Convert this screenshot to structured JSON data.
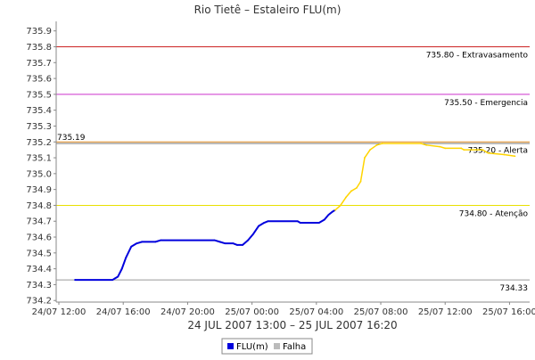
{
  "chart_data": {
    "type": "line",
    "title": "Rio Tietê – Estaleiro FLU(m)",
    "xlabel": "24 JUL 2007 13:00 – 25 JUL 2007 16:20",
    "ylabel": "",
    "ylim": [
      734.19,
      735.96
    ],
    "xlim": [
      "2007-07-24 11:50",
      "2007-07-25 17:15"
    ],
    "grid": false,
    "y_ticks": [
      "734.2",
      "734.3",
      "734.4",
      "734.5",
      "734.6",
      "734.7",
      "734.8",
      "734.9",
      "735.0",
      "735.1",
      "735.2",
      "735.3",
      "735.4",
      "735.5",
      "735.6",
      "735.7",
      "735.8",
      "735.9"
    ],
    "x_ticks": [
      {
        "t": "2007-07-24 12:00",
        "label": "24/07 12:00"
      },
      {
        "t": "2007-07-24 16:00",
        "label": "24/07 16:00"
      },
      {
        "t": "2007-07-24 20:00",
        "label": "24/07 20:00"
      },
      {
        "t": "2007-07-25 00:00",
        "label": "25/07 00:00"
      },
      {
        "t": "2007-07-25 04:00",
        "label": "25/07 04:00"
      },
      {
        "t": "2007-07-25 08:00",
        "label": "25/07 08:00"
      },
      {
        "t": "2007-07-25 12:00",
        "label": "25/07 12:00"
      },
      {
        "t": "2007-07-25 16:00",
        "label": "25/07 16:00"
      }
    ],
    "thresholds": [
      {
        "value": 735.8,
        "label": "735.80 - Extravasamento",
        "color": "#cc2222"
      },
      {
        "value": 735.5,
        "label": "735.50 - Emergencia",
        "color": "#cc33cc"
      },
      {
        "value": 735.2,
        "label": "735.20 - Alerta",
        "color": "#e08a1e"
      },
      {
        "value": 734.8,
        "label": "734.80 - Atenção",
        "color": "#e8e000"
      },
      {
        "value": 734.33,
        "label": "734.33",
        "color": "#999999"
      },
      {
        "value": 735.19,
        "label": "735.19",
        "color": "#777777"
      }
    ],
    "series": [
      {
        "name": "FLU(m)",
        "color": "#0000dd",
        "points": [
          [
            "2007-07-24 13:00",
            734.33
          ],
          [
            "2007-07-24 15:20",
            734.33
          ],
          [
            "2007-07-24 15:40",
            734.35
          ],
          [
            "2007-07-24 15:55",
            734.4
          ],
          [
            "2007-07-24 16:10",
            734.47
          ],
          [
            "2007-07-24 16:30",
            734.54
          ],
          [
            "2007-07-24 16:50",
            734.56
          ],
          [
            "2007-07-24 17:10",
            734.57
          ],
          [
            "2007-07-24 18:00",
            734.57
          ],
          [
            "2007-07-24 18:20",
            734.58
          ],
          [
            "2007-07-24 21:40",
            734.58
          ],
          [
            "2007-07-24 22:00",
            734.57
          ],
          [
            "2007-07-24 22:20",
            734.56
          ],
          [
            "2007-07-24 22:50",
            734.56
          ],
          [
            "2007-07-24 23:05",
            734.55
          ],
          [
            "2007-07-24 23:25",
            734.55
          ],
          [
            "2007-07-24 23:45",
            734.58
          ],
          [
            "2007-07-25 00:05",
            734.62
          ],
          [
            "2007-07-25 00:25",
            734.67
          ],
          [
            "2007-07-25 00:45",
            734.69
          ],
          [
            "2007-07-25 01:00",
            734.7
          ],
          [
            "2007-07-25 02:50",
            734.7
          ],
          [
            "2007-07-25 03:00",
            734.69
          ],
          [
            "2007-07-25 04:10",
            734.69
          ],
          [
            "2007-07-25 04:30",
            734.71
          ],
          [
            "2007-07-25 04:45",
            734.74
          ],
          [
            "2007-07-25 05:00",
            734.76
          ],
          [
            "2007-07-25 05:10",
            734.77
          ]
        ]
      },
      {
        "name": "",
        "color": "#ffd400",
        "points": [
          [
            "2007-07-25 05:10",
            734.77
          ],
          [
            "2007-07-25 05:30",
            734.8
          ],
          [
            "2007-07-25 05:50",
            734.85
          ],
          [
            "2007-07-25 06:10",
            734.89
          ],
          [
            "2007-07-25 06:30",
            734.91
          ],
          [
            "2007-07-25 06:45",
            734.95
          ],
          [
            "2007-07-25 07:00",
            735.1
          ],
          [
            "2007-07-25 07:20",
            735.15
          ],
          [
            "2007-07-25 07:45",
            735.18
          ],
          [
            "2007-07-25 08:05",
            735.19
          ],
          [
            "2007-07-25 10:30",
            735.19
          ],
          [
            "2007-07-25 10:50",
            735.18
          ],
          [
            "2007-07-25 11:40",
            735.17
          ],
          [
            "2007-07-25 12:00",
            735.16
          ],
          [
            "2007-07-25 13:00",
            735.16
          ],
          [
            "2007-07-25 13:10",
            735.15
          ],
          [
            "2007-07-25 14:20",
            735.15
          ],
          [
            "2007-07-25 14:40",
            735.13
          ],
          [
            "2007-07-25 15:40",
            735.12
          ],
          [
            "2007-07-25 16:20",
            735.11
          ]
        ]
      }
    ],
    "legend": {
      "position": "bottom",
      "items": [
        {
          "label": "FLU(m)",
          "color": "#0000dd"
        },
        {
          "label": "Falha",
          "color": "#bbbbbb"
        }
      ]
    }
  }
}
